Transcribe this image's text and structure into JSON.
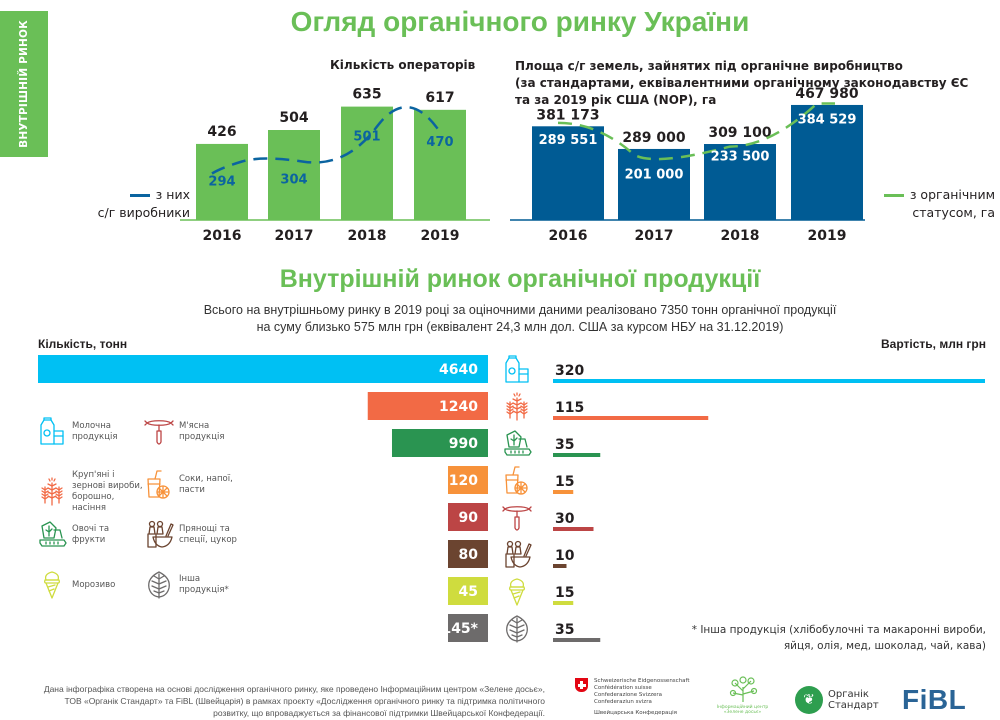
{
  "side_tab": {
    "label": "ВНУТРІШНІЙ РИНОК"
  },
  "header": {
    "title": "Огляд органічного ринку України"
  },
  "colors": {
    "green": "#6abf57",
    "blue_dark": "#005b94",
    "line_blue": "#0b64a0",
    "line_green": "#6abf57"
  },
  "chart_data": [
    {
      "type": "bar",
      "id": "operators",
      "title": "Кількість операторів",
      "categories": [
        "2016",
        "2017",
        "2018",
        "2019"
      ],
      "series": [
        {
          "name": "Кількість операторів",
          "values": [
            426,
            504,
            635,
            617
          ],
          "kind": "bar"
        },
        {
          "name": "з них с/г виробники",
          "values": [
            294,
            304,
            501,
            470
          ],
          "kind": "dashed-line"
        }
      ],
      "value_labels_bar": [
        "426",
        "504",
        "635",
        "617"
      ],
      "value_labels_line": [
        "294",
        "304",
        "501",
        "470"
      ],
      "legend": {
        "line1": "з них",
        "line2": "с/г виробники",
        "placement": "left"
      },
      "ylim": [
        0,
        700
      ]
    },
    {
      "type": "bar",
      "id": "area",
      "title_lines": [
        "Площа с/г земель, зайнятих під органічне виробництво",
        "(за стандартами, еквівалентними органічному законодавству ЄС",
        "та за 2019 рік США (NOP), га"
      ],
      "categories": [
        "2016",
        "2017",
        "2018",
        "2019"
      ],
      "series": [
        {
          "name": "Площа, га",
          "values": [
            381173,
            289000,
            309100,
            467980
          ],
          "kind": "bar"
        },
        {
          "name": "з органічним статусом, га",
          "values": [
            289551,
            201000,
            233500,
            384529
          ],
          "kind": "dashed-line"
        }
      ],
      "value_labels_bar": [
        "381 173",
        "289 000",
        "309 100",
        "467 980"
      ],
      "value_labels_line": [
        "289 551",
        "201 000",
        "233 500",
        "384 529"
      ],
      "legend": {
        "line1": "з органічним",
        "line2": "статусом, га",
        "placement": "right"
      },
      "ylim": [
        0,
        520000
      ]
    },
    {
      "type": "bar",
      "id": "domestic",
      "orientation": "horizontal-butterfly",
      "left_axis_label": "Кількість, тонн",
      "right_axis_label": "Вартість, млн грн",
      "categories": [
        "Молочна продукція",
        "Круп'яні і зернові вироби, борошно, насіння",
        "Овочі та фрукти",
        "Соки, напої, пасти",
        "М'ясна продукція",
        "Прянощі та спеції, цукор",
        "Морозиво",
        "Інша продукція*"
      ],
      "series": [
        {
          "name": "Кількість, тонн",
          "values": [
            4640,
            1240,
            990,
            120,
            90,
            80,
            45,
            145
          ],
          "labels": [
            "4640",
            "1240",
            "990",
            "120",
            "90",
            "80",
            "45",
            "145*"
          ]
        },
        {
          "name": "Вартість, млн грн",
          "values": [
            320,
            115,
            35,
            15,
            30,
            10,
            15,
            35
          ],
          "labels": [
            "320",
            "115",
            "35",
            "15",
            "30",
            "10",
            "15",
            "35"
          ]
        }
      ],
      "colors": [
        "#00c0f3",
        "#f26a45",
        "#2a9451",
        "#f7923a",
        "#bc4545",
        "#6b4430",
        "#cfdc3e",
        "#6d6b6b"
      ],
      "icons": [
        "milk-icon",
        "wheat-icon",
        "vegetables-icon",
        "juice-icon",
        "sausage-icon",
        "spices-icon",
        "icecream-icon",
        "leaf-icon"
      ]
    }
  ],
  "section2": {
    "title": "Внутрішній ринок органічної продукції",
    "desc_line1": "Всього на внутрішньому ринку в 2019 році за оціночними даними реалізовано 7350 тонн органічної продукції",
    "desc_line2": "на суму близько 575 млн грн (еквівалент 24,3 млн дол. США за курсом НБУ на 31.12.2019)"
  },
  "legend_items": [
    {
      "icon": "milk-icon",
      "label": "Молочна продукція",
      "color": "#00c0f3"
    },
    {
      "icon": "sausage-icon",
      "label": "М'ясна продукція",
      "color": "#bc4545"
    },
    {
      "icon": "wheat-icon",
      "label": "Круп'яні і зернові вироби, борошно, насіння",
      "color": "#f26a45"
    },
    {
      "icon": "juice-icon",
      "label": "Соки, напої, пасти",
      "color": "#f7923a"
    },
    {
      "icon": "vegetables-icon",
      "label": "Овочі та фрукти",
      "color": "#2a9451"
    },
    {
      "icon": "spices-icon",
      "label": "Прянощі та спеції, цукор",
      "color": "#6b4430"
    },
    {
      "icon": "icecream-icon",
      "label": "Морозиво",
      "color": "#cfdc3e"
    },
    {
      "icon": "leaf-icon",
      "label": "Інша продукція*",
      "color": "#6d6b6b"
    }
  ],
  "footnote": {
    "line1": "* Інша продукція (хлібобулочні та макаронні вироби,",
    "line2": "яйця, олія, мед, шоколад, чай, кава)"
  },
  "footer": {
    "credit_line1": "Дана інфографіка створена на основі дослідження органічного ринку, яке проведено Інформаційним центром «Зелене досьє»,",
    "credit_line2": "ТОВ «Органік Стандарт» та FiBL (Швейцарія) в рамках проєкту «Дослідження органічного ринку та підтримка політичного",
    "credit_line3": "розвитку, що впроваджується за фінансової підтримки Швейцарської Конфедерації.",
    "swiss_lines": [
      "Schweizerische Eidgenossenschaft",
      "Confédération suisse",
      "Confederazione Svizzera",
      "Confederaziun svizra",
      "Швейцарська Конфедерація"
    ],
    "zd_logo": "Інформаційний центр «Зелене досьє»",
    "os_logo_line1": "Органік",
    "os_logo_line2": "Стандарт",
    "fibl_logo": "FiBL"
  }
}
